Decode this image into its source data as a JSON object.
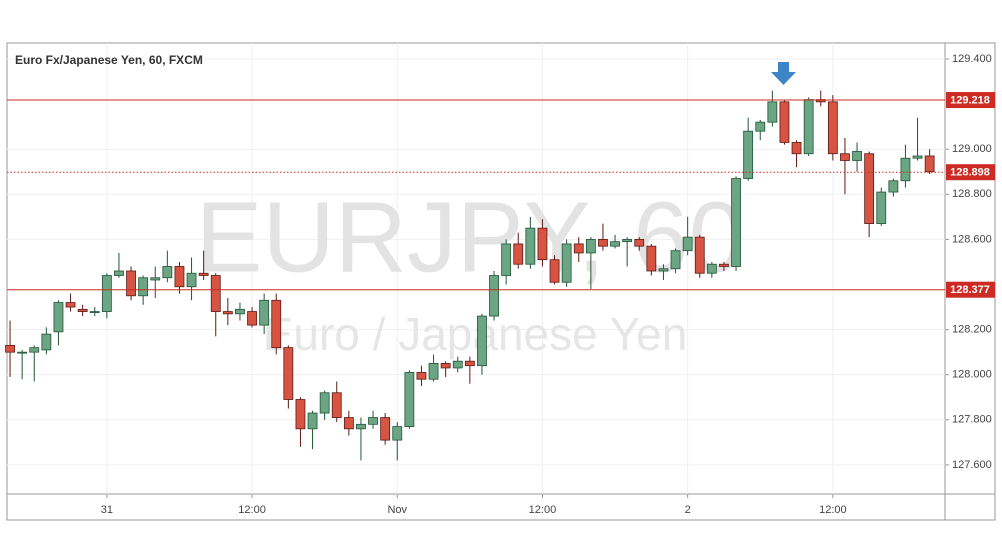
{
  "chart_data": {
    "type": "candlestick",
    "title": "Euro Fx/Japanese Yen, 60, FXCM",
    "watermark": "EURJPY, 60",
    "watermark_subtitle": "Euro / Japanese Yen",
    "categories": [
      null,
      null,
      null,
      null,
      null,
      null,
      null,
      null,
      "31",
      null,
      null,
      null,
      null,
      null,
      null,
      null,
      null,
      null,
      null,
      null,
      "12:00",
      null,
      null,
      null,
      null,
      null,
      null,
      null,
      null,
      null,
      null,
      null,
      "Nov",
      null,
      null,
      null,
      null,
      null,
      null,
      null,
      null,
      null,
      null,
      null,
      "12:00",
      null,
      null,
      null,
      null,
      null,
      null,
      null,
      null,
      null,
      null,
      null,
      "2",
      null,
      null,
      null,
      null,
      null,
      null,
      null,
      null,
      null,
      null,
      null,
      "12:00",
      null,
      null,
      null,
      null,
      null,
      null,
      null,
      null
    ],
    "open": [
      128.13,
      128.1,
      128.1,
      128.11,
      128.19,
      128.32,
      128.29,
      128.28,
      128.28,
      128.44,
      128.46,
      128.35,
      128.42,
      128.43,
      128.48,
      128.39,
      128.45,
      128.44,
      128.28,
      128.27,
      128.28,
      128.22,
      128.33,
      128.12,
      127.89,
      127.76,
      127.83,
      127.92,
      127.81,
      127.76,
      127.78,
      127.81,
      127.71,
      127.77,
      128.01,
      127.98,
      128.05,
      128.03,
      128.06,
      128.04,
      128.26,
      128.44,
      128.58,
      128.49,
      128.65,
      128.51,
      128.41,
      128.58,
      128.54,
      128.6,
      128.57,
      128.59,
      128.6,
      128.57,
      128.46,
      128.47,
      128.55,
      128.61,
      128.45,
      128.49,
      128.48,
      128.87,
      129.08,
      129.12,
      129.21,
      129.03,
      128.98,
      129.22,
      129.21,
      128.98,
      128.95,
      128.98,
      128.67,
      128.81,
      128.86,
      128.96,
      128.97
    ],
    "high": [
      128.24,
      128.11,
      128.13,
      128.21,
      128.33,
      128.36,
      128.31,
      128.3,
      128.45,
      128.54,
      128.48,
      128.44,
      128.48,
      128.55,
      128.5,
      128.52,
      128.55,
      128.45,
      128.34,
      128.32,
      128.3,
      128.36,
      128.36,
      128.13,
      127.9,
      127.84,
      127.93,
      127.97,
      127.84,
      127.81,
      127.84,
      127.83,
      127.79,
      128.02,
      128.04,
      128.09,
      128.06,
      128.08,
      128.08,
      128.27,
      128.46,
      128.6,
      128.63,
      128.7,
      128.69,
      128.53,
      128.6,
      128.61,
      128.61,
      128.67,
      128.62,
      128.61,
      128.61,
      128.58,
      128.49,
      128.56,
      128.7,
      128.62,
      128.5,
      128.5,
      128.88,
      129.14,
      129.13,
      129.26,
      129.22,
      129.04,
      129.23,
      129.26,
      129.24,
      129.05,
      129.03,
      128.99,
      128.83,
      128.87,
      129.02,
      129.14,
      129.0
    ],
    "low": [
      127.99,
      127.98,
      127.97,
      128.09,
      128.13,
      128.28,
      128.26,
      128.26,
      128.25,
      128.43,
      128.33,
      128.31,
      128.34,
      128.41,
      128.36,
      128.33,
      128.42,
      128.17,
      128.22,
      128.24,
      128.21,
      128.18,
      128.09,
      127.85,
      127.68,
      127.67,
      127.8,
      127.79,
      127.73,
      127.62,
      127.76,
      127.69,
      127.62,
      127.76,
      127.95,
      127.97,
      127.99,
      128.01,
      127.96,
      128.0,
      128.24,
      128.4,
      128.47,
      128.47,
      128.48,
      128.4,
      128.39,
      128.5,
      128.38,
      128.55,
      128.56,
      128.48,
      128.55,
      128.44,
      128.42,
      128.45,
      128.53,
      128.43,
      128.43,
      128.46,
      128.46,
      128.86,
      129.04,
      129.1,
      129.02,
      128.92,
      128.97,
      129.19,
      128.95,
      128.8,
      128.9,
      128.61,
      128.66,
      128.79,
      128.83,
      128.95,
      128.89
    ],
    "close": [
      128.1,
      128.1,
      128.12,
      128.18,
      128.32,
      128.3,
      128.28,
      128.28,
      128.44,
      128.46,
      128.35,
      128.43,
      128.43,
      128.48,
      128.39,
      128.45,
      128.44,
      128.28,
      128.27,
      128.29,
      128.22,
      128.33,
      128.12,
      127.89,
      127.76,
      127.83,
      127.92,
      127.81,
      127.76,
      127.78,
      127.81,
      127.71,
      127.77,
      128.01,
      127.98,
      128.05,
      128.03,
      128.06,
      128.04,
      128.26,
      128.44,
      128.58,
      128.49,
      128.65,
      128.51,
      128.41,
      128.58,
      128.54,
      128.6,
      128.57,
      128.59,
      128.6,
      128.57,
      128.46,
      128.47,
      128.55,
      128.61,
      128.45,
      128.49,
      128.48,
      128.87,
      129.08,
      129.12,
      129.21,
      129.03,
      128.98,
      129.22,
      129.21,
      128.98,
      128.95,
      128.99,
      128.67,
      128.81,
      128.86,
      128.96,
      128.97,
      128.9
    ],
    "up_color": "#6ba583",
    "up_border": "#225437",
    "down_color": "#d75442",
    "down_border": "#5b1a13",
    "ylim": [
      127.471,
      129.471
    ],
    "yticks": [
      {
        "value": 127.6,
        "label": "127.600"
      },
      {
        "value": 127.8,
        "label": "127.800"
      },
      {
        "value": 128.0,
        "label": "128.000"
      },
      {
        "value": 128.2,
        "label": "128.200"
      },
      {
        "value": 128.6,
        "label": "128.600"
      },
      {
        "value": 128.8,
        "label": "128.800"
      },
      {
        "value": 129.0,
        "label": "129.000"
      },
      {
        "value": 129.4,
        "label": "129.400"
      }
    ],
    "grid": true,
    "price_lines": [
      {
        "value": 129.218,
        "color": "#cc2a22",
        "dashed": false
      },
      {
        "value": 128.377,
        "color": "#cc2a22",
        "dashed": false
      },
      {
        "value": 128.898,
        "color": "#cc2a22",
        "dashed": true
      }
    ]
  }
}
